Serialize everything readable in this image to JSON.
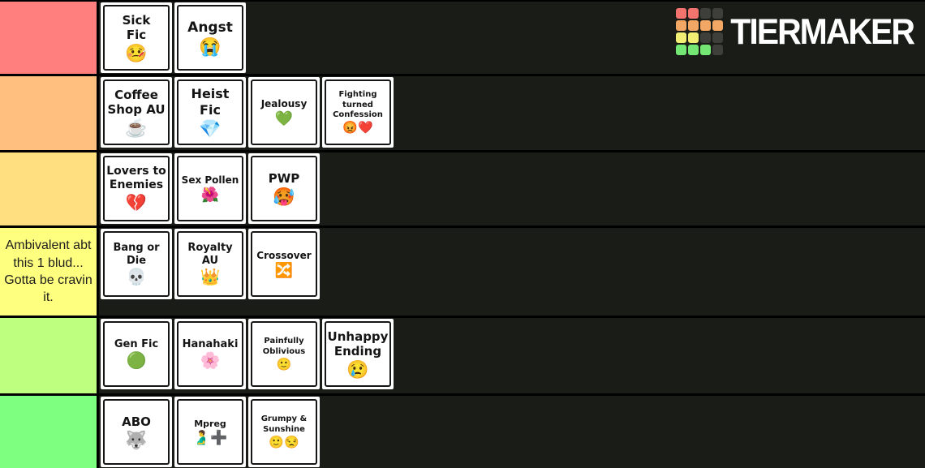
{
  "brand": {
    "name": "TIERMAKER",
    "palette": {
      "red": "#f3746f",
      "orange": "#f2a765",
      "yellow": "#f2ee74",
      "green": "#74e674",
      "dark": "#3e3e3a"
    },
    "grid": [
      [
        "red",
        "red",
        "dark",
        "dark"
      ],
      [
        "orange",
        "orange",
        "orange",
        "orange"
      ],
      [
        "yellow",
        "yellow",
        "dark",
        "dark"
      ],
      [
        "green",
        "green",
        "green",
        "dark"
      ]
    ]
  },
  "tiers": [
    {
      "label": "",
      "color": "#ff7f7e",
      "items": [
        {
          "title": "Sick\nFic",
          "emoji": "🤒",
          "emoji_name": "face-with-thermometer-emoji",
          "fs": 15
        },
        {
          "title": "Angst",
          "emoji": "😭",
          "emoji_name": "loudly-crying-emoji",
          "fs": 17
        }
      ]
    },
    {
      "label": "",
      "color": "#ffbf7f",
      "items": [
        {
          "title": "Coffee\nShop AU",
          "emoji": "☕",
          "emoji_name": "coffee-emoji",
          "fs": 15
        },
        {
          "title": "Heist Fic",
          "emoji": "💎",
          "emoji_name": "gem-stone-emoji",
          "fs": 16
        },
        {
          "title": "Jealousy",
          "emoji": "💚",
          "emoji_name": "green-heart-emoji",
          "fs": 12
        },
        {
          "title": "Fighting\nturned\nConfession",
          "emoji": "😡❤️",
          "emoji_name": "angry-face-red-heart-emoji",
          "fs": 10
        }
      ]
    },
    {
      "label": "",
      "color": "#ffdf80",
      "items": [
        {
          "title": "Lovers to\nEnemies",
          "emoji": "💔",
          "emoji_name": "broken-heart-emoji",
          "fs": 14
        },
        {
          "title": "Sex Pollen",
          "emoji": "🌺",
          "emoji_name": "hibiscus-emoji",
          "fs": 12
        },
        {
          "title": "PWP",
          "emoji": "🥵",
          "emoji_name": "hot-face-emoji",
          "fs": 15
        }
      ]
    },
    {
      "label": "Ambivalent abt this 1 blud... Gotta be cravin it.",
      "color": "#ffff7f",
      "items": [
        {
          "title": "Bang or\nDie",
          "emoji": "💀",
          "emoji_name": "skull-emoji",
          "fs": 13
        },
        {
          "title": "Royalty\nAU",
          "emoji": "👑",
          "emoji_name": "crown-emoji",
          "fs": 13
        },
        {
          "title": "Crossover",
          "emoji": "🔀",
          "emoji_name": "shuffle-emoji",
          "fs": 12
        }
      ]
    },
    {
      "label": "",
      "color": "#bfff7f",
      "items": [
        {
          "title": "Gen Fic",
          "emoji": "🟢",
          "emoji_name": "green-circle-emoji",
          "fs": 13
        },
        {
          "title": "Hanahaki",
          "emoji": "🌸",
          "emoji_name": "cherry-blossom-emoji",
          "fs": 13
        },
        {
          "title": "Painfully\nOblivious",
          "emoji": "🙂",
          "emoji_name": "slightly-smiling-emoji",
          "fs": 10
        },
        {
          "title": "Unhappy\nEnding",
          "emoji": "😢",
          "emoji_name": "crying-face-emoji",
          "fs": 15
        }
      ]
    },
    {
      "label": "",
      "color": "#7fff7f",
      "items": [
        {
          "title": "ABO",
          "emoji": "🐺",
          "emoji_name": "wolf-emoji",
          "fs": 15
        },
        {
          "title": "Mpreg",
          "emoji": "🫃➕",
          "emoji_name": "pregnant-man-plus-emoji",
          "fs": 11
        },
        {
          "title": "Grumpy &\nSunshine",
          "emoji": "🙂😒",
          "emoji_name": "grumpy-sunshine-emoji",
          "fs": 10
        }
      ]
    }
  ]
}
